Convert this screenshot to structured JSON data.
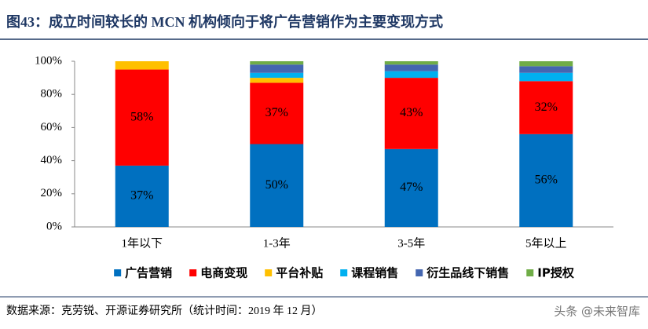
{
  "chart_data": {
    "type": "stacked_bar",
    "title": "图43：成立时间较长的 MCN 机构倾向于将广告营销作为主要变现方式",
    "categories": [
      "1年以下",
      "1-3年",
      "3-5年",
      "5年以上"
    ],
    "series": [
      {
        "name": "广告营销",
        "color": "#0070c0",
        "values": [
          37,
          50,
          47,
          56
        ],
        "value_labels": [
          "37%",
          "50%",
          "47%",
          "56%"
        ]
      },
      {
        "name": "电商变现",
        "color": "#ff0000",
        "values": [
          58,
          37,
          43,
          32
        ],
        "value_labels": [
          "58%",
          "37%",
          "43%",
          "32%"
        ]
      },
      {
        "name": "平台补贴",
        "color": "#ffc000",
        "values": [
          5,
          3,
          0,
          0
        ]
      },
      {
        "name": "课程销售",
        "color": "#00b0f0",
        "values": [
          0,
          3,
          4,
          5
        ]
      },
      {
        "name": "衍生品线下销售",
        "color": "#4466b0",
        "values": [
          0,
          5,
          4,
          4
        ]
      },
      {
        "name": "IP授权",
        "color": "#70ad47",
        "values": [
          0,
          2,
          2,
          3
        ]
      }
    ],
    "ylim": [
      0,
      100
    ],
    "yticks": [
      {
        "value": 0,
        "label": "0%"
      },
      {
        "value": 20,
        "label": "20%"
      },
      {
        "value": 40,
        "label": "40%"
      },
      {
        "value": 60,
        "label": "60%"
      },
      {
        "value": 80,
        "label": "80%"
      },
      {
        "value": 100,
        "label": "100%"
      }
    ],
    "grid": false,
    "legend": "bottom"
  },
  "source": "数据来源：克劳锐、开源证券研究所（统计时间：2019 年 12 月）",
  "watermark": "头条 @未来智库"
}
